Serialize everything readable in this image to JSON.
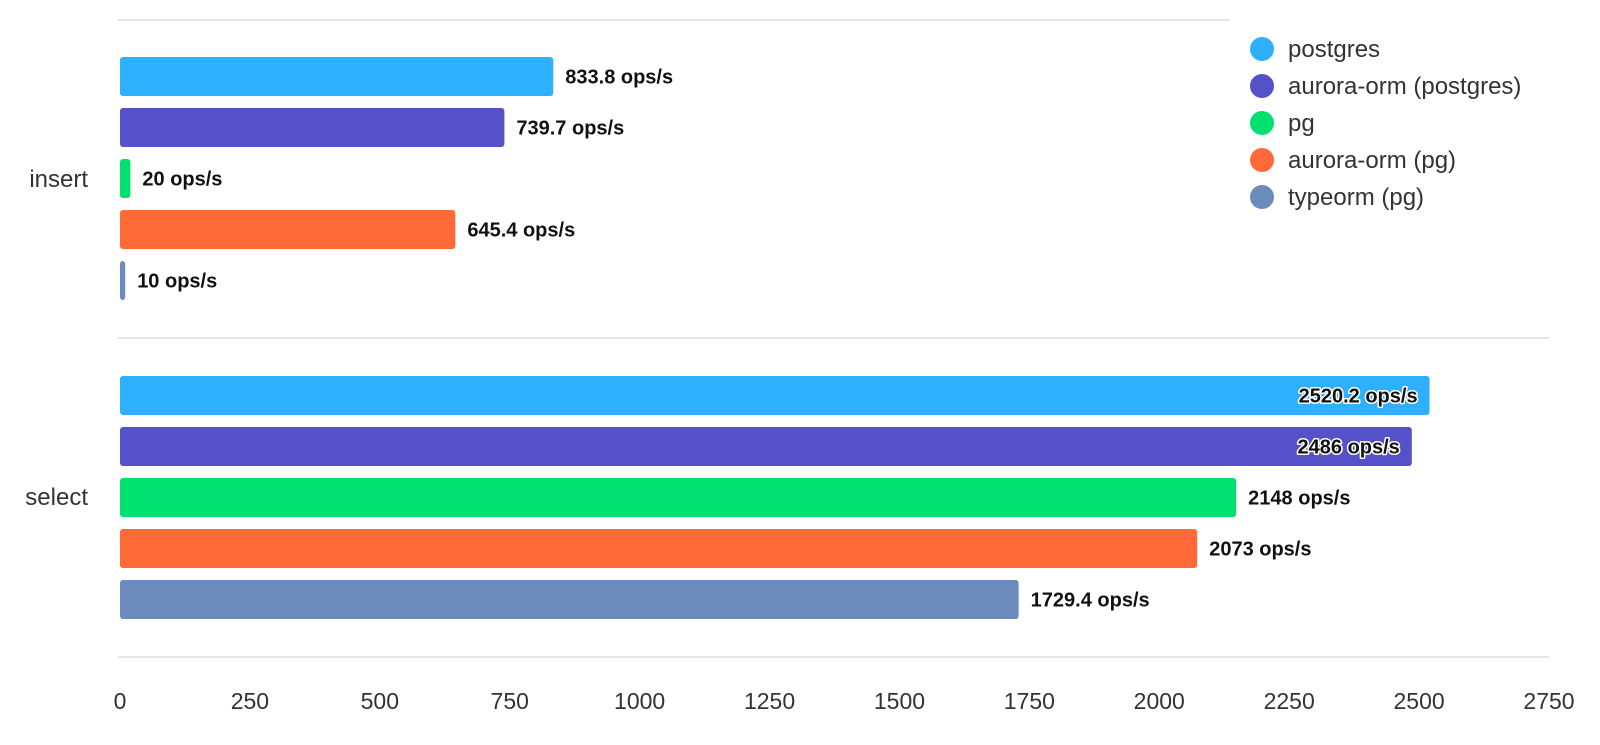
{
  "chart_data": {
    "type": "bar",
    "orientation": "horizontal",
    "categories": [
      "insert",
      "select"
    ],
    "series": [
      {
        "name": "postgres",
        "color": "#2eb0ff",
        "values": [
          833.8,
          2520.2
        ],
        "labels": [
          "833.8 ops/s",
          "2520.2 ops/s"
        ]
      },
      {
        "name": "aurora-orm (postgres)",
        "color": "#5551c8",
        "values": [
          739.7,
          2486
        ],
        "labels": [
          "739.7 ops/s",
          "2486 ops/s"
        ]
      },
      {
        "name": "pg",
        "color": "#00e070",
        "values": [
          20,
          2148
        ],
        "labels": [
          "20 ops/s",
          "2148 ops/s"
        ]
      },
      {
        "name": "aurora-orm (pg)",
        "color": "#ff6a39",
        "values": [
          645.4,
          2073
        ],
        "labels": [
          "645.4 ops/s",
          "2073 ops/s"
        ]
      },
      {
        "name": "typeorm (pg)",
        "color": "#6b8bbd",
        "values": [
          10,
          1729.4
        ],
        "labels": [
          "10 ops/s",
          "1729.4 ops/s"
        ]
      }
    ],
    "xlim": [
      0,
      2750
    ],
    "xticks": [
      0,
      250,
      500,
      750,
      1000,
      1250,
      1500,
      1750,
      2000,
      2250,
      2500,
      2750
    ],
    "xtick_labels": [
      "0",
      "250",
      "500",
      "750",
      "1000",
      "1250",
      "1500",
      "1750",
      "2000",
      "2250",
      "2500",
      "2750"
    ],
    "title": "",
    "xlabel": "",
    "ylabel": "",
    "legend_position": "top-right",
    "grid": "horizontal separators between categories"
  }
}
